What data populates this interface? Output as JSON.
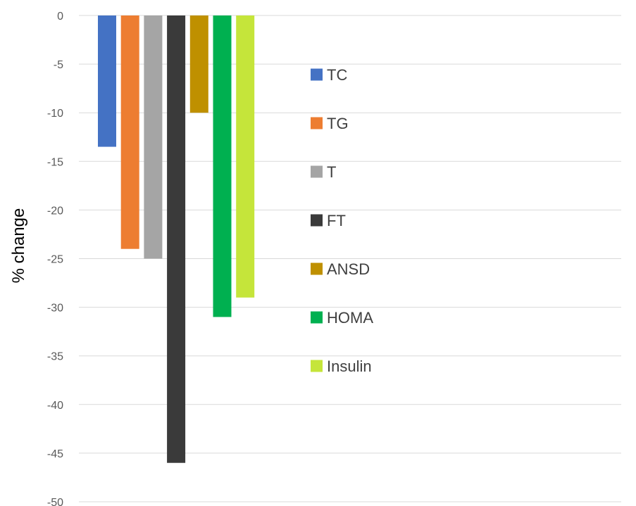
{
  "chart_data": {
    "type": "bar",
    "ylabel": "% change",
    "ylim": [
      -50,
      0
    ],
    "y_ticks": [
      0,
      -5,
      -10,
      -15,
      -20,
      -25,
      -30,
      -35,
      -40,
      -45,
      -50
    ],
    "grid": true,
    "legend_position": "right",
    "series": [
      {
        "name": "TC",
        "value": -13.5,
        "color": "#4472c4"
      },
      {
        "name": "TG",
        "value": -24,
        "color": "#ed7d31"
      },
      {
        "name": "T",
        "value": -25,
        "color": "#a5a5a5"
      },
      {
        "name": "FT",
        "value": -46,
        "color": "#3a3a3a"
      },
      {
        "name": "ANSD",
        "value": -10,
        "color": "#bf9000"
      },
      {
        "name": "HOMA",
        "value": -31,
        "color": "#00b050"
      },
      {
        "name": "Insulin",
        "value": -29,
        "color": "#c5e53a"
      }
    ]
  }
}
